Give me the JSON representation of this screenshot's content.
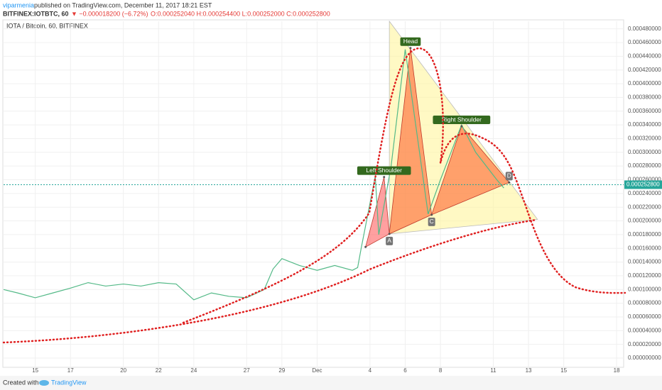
{
  "header": {
    "author": "viparmenia",
    "published": "published on TradingView.com, December 11, 2017 18:21 EST",
    "symbol": "BITFINEX:IOTBTC, 60",
    "change": "▼ −0.000018200 (−6.72%)",
    "ohlc": "O:0.000252040 H:0.000254400 L:0.000252000 C:0.000252800"
  },
  "footer": {
    "created": "Created with",
    "brand": "TradingView"
  },
  "chart_data": {
    "type": "line",
    "legend": "IOTA / Bitcoin, 60, BITFINEX",
    "color": "#53b987",
    "xlim": [
      -1.8,
      33.4
    ],
    "ylim": [
      -1.34e-05,
      0.000491
    ],
    "xticks": [
      {
        "value": 0,
        "label": "15"
      },
      {
        "value": 2,
        "label": "17"
      },
      {
        "value": 5,
        "label": "20"
      },
      {
        "value": 7,
        "label": "22"
      },
      {
        "value": 9,
        "label": "24"
      },
      {
        "value": 12,
        "label": "27"
      },
      {
        "value": 14,
        "label": "29"
      },
      {
        "value": 16,
        "label": "Dec"
      },
      {
        "value": 19,
        "label": "4"
      },
      {
        "value": 21,
        "label": "6"
      },
      {
        "value": 23,
        "label": "8"
      },
      {
        "value": 26,
        "label": "11"
      },
      {
        "value": 28,
        "label": "13"
      },
      {
        "value": 30,
        "label": "15"
      },
      {
        "value": 33,
        "label": "18"
      }
    ],
    "yticks": [
      {
        "value": 0,
        "label": "0.000000000"
      },
      {
        "value": 2e-05,
        "label": "0.000020000"
      },
      {
        "value": 4e-05,
        "label": "0.000040000"
      },
      {
        "value": 6e-05,
        "label": "0.000060000"
      },
      {
        "value": 8e-05,
        "label": "0.000080000"
      },
      {
        "value": 0.0001,
        "label": "0.000100000"
      },
      {
        "value": 0.00012,
        "label": "0.000120000"
      },
      {
        "value": 0.00014,
        "label": "0.000140000"
      },
      {
        "value": 0.00016,
        "label": "0.000160000"
      },
      {
        "value": 0.00018,
        "label": "0.000180000"
      },
      {
        "value": 0.0002,
        "label": "0.000200000"
      },
      {
        "value": 0.00022,
        "label": "0.000220000"
      },
      {
        "value": 0.00024,
        "label": "0.000240000"
      },
      {
        "value": 0.00026,
        "label": "0.000260000"
      },
      {
        "value": 0.00028,
        "label": "0.000280000"
      },
      {
        "value": 0.0003,
        "label": "0.000300000"
      },
      {
        "value": 0.00032,
        "label": "0.000320000"
      },
      {
        "value": 0.00034,
        "label": "0.000340000"
      },
      {
        "value": 0.00036,
        "label": "0.000360000"
      },
      {
        "value": 0.00038,
        "label": "0.000380000"
      },
      {
        "value": 0.0004,
        "label": "0.000400000"
      },
      {
        "value": 0.00042,
        "label": "0.000420000"
      },
      {
        "value": 0.00044,
        "label": "0.000440000"
      },
      {
        "value": 0.00046,
        "label": "0.000460000"
      },
      {
        "value": 0.00048,
        "label": "0.000480000"
      }
    ],
    "x": [
      -1.8,
      -1,
      0,
      1,
      2,
      3,
      4,
      5,
      6,
      7,
      8,
      9,
      10,
      11,
      12,
      13,
      13.5,
      14,
      15,
      16,
      17,
      18,
      18.3,
      18.5,
      19.3,
      19.5,
      20.2,
      21,
      22.3,
      23,
      24.2,
      25,
      26.2,
      26.6
    ],
    "values": [
      0.0001,
      9.5e-05,
      8.8e-05,
      9.5e-05,
      0.000102,
      0.00011,
      0.000105,
      0.000108,
      0.000105,
      0.00011,
      0.000108,
      8.5e-05,
      9.5e-05,
      9e-05,
      8.8e-05,
      0.0001,
      0.00013,
      0.000145,
      0.000135,
      0.000128,
      0.000135,
      0.000128,
      0.000132,
      0.00016,
      0.000265,
      0.00018,
      0.00028,
      0.00045,
      0.00021,
      0.00026,
      0.00034,
      0.0003,
      0.00026,
      0.000248
    ],
    "last": {
      "value": 0.0002528,
      "label": "0.000252800"
    },
    "pattern": [
      {
        "label": null,
        "x": 18.75,
        "y": 0.000162
      },
      {
        "label": "Left Shoulder",
        "x": 19.8,
        "y": 0.000264
      },
      {
        "label": "A",
        "x": 20.1,
        "y": 0.000181
      },
      {
        "label": "Head",
        "x": 21.3,
        "y": 0.000452
      },
      {
        "label": "C",
        "x": 22.5,
        "y": 0.000209
      },
      {
        "label": "Right Shoulder",
        "x": 24.2,
        "y": 0.000338
      },
      {
        "label": "D",
        "x": 26.9,
        "y": 0.000256
      }
    ]
  }
}
